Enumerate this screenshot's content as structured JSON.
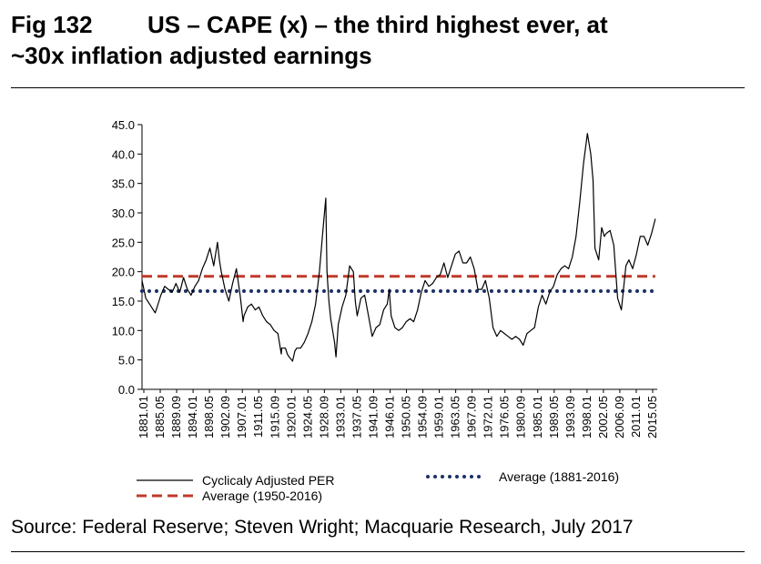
{
  "title": {
    "fig_number": "Fig 132",
    "line1": "US – CAPE (x) – the third highest ever, at",
    "line2": "~30x inflation adjusted earnings"
  },
  "source": "Source: Federal Reserve; Steven Wright; Macquarie Research, July 2017",
  "chart_data": {
    "type": "line",
    "title": "",
    "xlabel": "",
    "ylabel": "",
    "ylim": [
      0,
      45
    ],
    "yticks": [
      "0.0",
      "5.0",
      "10.0",
      "15.0",
      "20.0",
      "25.0",
      "30.0",
      "35.0",
      "40.0",
      "45.0"
    ],
    "xlim": [
      1881.0,
      2017.5
    ],
    "xticks": [
      "1881.01",
      "1885.05",
      "1889.09",
      "1894.01",
      "1898.05",
      "1902.09",
      "1907.01",
      "1911.05",
      "1915.09",
      "1920.01",
      "1924.05",
      "1928.09",
      "1933.01",
      "1937.05",
      "1941.09",
      "1946.01",
      "1950.05",
      "1954.09",
      "1959.01",
      "1963.05",
      "1967.09",
      "1972.01",
      "1976.05",
      "1980.09",
      "1985.01",
      "1989.05",
      "1993.09",
      "1998.01",
      "2002.05",
      "2006.09",
      "2011.01",
      "2015.05"
    ],
    "grid": false,
    "legend_position": "bottom",
    "series": [
      {
        "name": "Cyclicaly Adjusted PER",
        "color": "#000000",
        "style": "solid",
        "x": [
          1881.0,
          1881.5,
          1882.0,
          1883.0,
          1884.0,
          1884.5,
          1885.0,
          1886.0,
          1887.0,
          1888.0,
          1889.0,
          1890.0,
          1891.0,
          1892.0,
          1893.0,
          1894.0,
          1895.0,
          1896.0,
          1897.0,
          1898.0,
          1899.0,
          1900.0,
          1901.0,
          1901.5,
          1902.0,
          1903.0,
          1904.0,
          1905.0,
          1906.0,
          1907.0,
          1907.8,
          1908.0,
          1909.0,
          1910.0,
          1911.0,
          1912.0,
          1913.0,
          1914.0,
          1915.0,
          1916.0,
          1917.0,
          1917.9,
          1918.0,
          1919.0,
          1919.5,
          1920.0,
          1920.9,
          1921.5,
          1922.0,
          1923.0,
          1924.0,
          1925.0,
          1926.0,
          1927.0,
          1928.0,
          1929.0,
          1929.7,
          1930.0,
          1930.5,
          1931.0,
          1932.0,
          1932.4,
          1933.0,
          1934.0,
          1935.0,
          1936.0,
          1937.0,
          1937.5,
          1938.0,
          1939.0,
          1940.0,
          1941.0,
          1942.0,
          1943.0,
          1944.0,
          1945.0,
          1946.0,
          1946.5,
          1947.0,
          1948.0,
          1949.0,
          1950.0,
          1951.0,
          1952.0,
          1953.0,
          1954.0,
          1955.0,
          1956.0,
          1957.0,
          1958.0,
          1959.0,
          1960.0,
          1961.0,
          1962.0,
          1963.0,
          1964.0,
          1965.0,
          1966.0,
          1967.0,
          1968.0,
          1969.0,
          1970.0,
          1971.0,
          1972.0,
          1973.0,
          1974.0,
          1975.0,
          1976.0,
          1977.0,
          1978.0,
          1979.0,
          1980.0,
          1981.0,
          1982.0,
          1983.0,
          1984.0,
          1985.0,
          1986.0,
          1987.0,
          1988.0,
          1989.0,
          1990.0,
          1991.0,
          1992.0,
          1993.0,
          1994.0,
          1995.0,
          1996.0,
          1997.0,
          1998.0,
          1999.0,
          1999.9,
          2000.5,
          2001.0,
          2002.0,
          2002.8,
          2003.5,
          2004.0,
          2005.0,
          2006.0,
          2007.0,
          2008.0,
          2009.2,
          2010.0,
          2011.0,
          2012.0,
          2013.0,
          2014.0,
          2015.0,
          2016.0,
          2017.0
        ],
        "values": [
          18.5,
          17.0,
          15.5,
          14.5,
          13.5,
          13.0,
          14.0,
          16.0,
          17.5,
          17.0,
          16.5,
          18.0,
          16.5,
          19.0,
          17.0,
          16.0,
          17.5,
          18.5,
          20.5,
          22.0,
          24.0,
          21.0,
          25.0,
          22.0,
          20.0,
          17.0,
          15.0,
          18.0,
          20.5,
          16.0,
          11.5,
          12.5,
          14.0,
          14.5,
          13.5,
          14.0,
          12.5,
          11.5,
          11.0,
          10.0,
          9.5,
          6.0,
          7.0,
          7.0,
          6.0,
          5.5,
          4.8,
          6.5,
          7.0,
          7.0,
          8.0,
          9.5,
          11.5,
          14.5,
          20.0,
          27.5,
          32.5,
          20.0,
          15.0,
          12.0,
          8.0,
          5.5,
          11.0,
          14.0,
          16.0,
          21.0,
          20.0,
          15.0,
          12.5,
          15.5,
          16.0,
          12.5,
          9.0,
          10.5,
          11.0,
          13.5,
          14.5,
          17.0,
          12.5,
          10.5,
          10.0,
          10.5,
          11.5,
          12.0,
          11.5,
          13.5,
          16.5,
          18.5,
          17.5,
          18.0,
          19.0,
          19.5,
          21.5,
          19.0,
          21.0,
          23.0,
          23.5,
          21.5,
          21.5,
          22.5,
          20.5,
          17.0,
          17.0,
          18.5,
          15.5,
          10.5,
          9.0,
          10.0,
          9.5,
          9.0,
          8.5,
          9.0,
          8.5,
          7.5,
          9.5,
          10.0,
          10.5,
          14.0,
          16.0,
          14.5,
          16.5,
          17.5,
          19.5,
          20.5,
          21.0,
          20.5,
          22.5,
          26.0,
          32.0,
          38.5,
          43.5,
          40.0,
          35.5,
          24.0,
          22.0,
          27.5,
          26.0,
          26.5,
          27.0,
          24.5,
          15.5,
          13.5,
          21.0,
          22.0,
          20.5,
          23.0,
          26.0,
          26.0,
          24.5,
          26.5,
          29.0
        ]
      },
      {
        "name": "Average (1881-2016)",
        "color": "#1a2f66",
        "style": "dotted",
        "x": [
          1881.0,
          2017.0
        ],
        "values": [
          16.7,
          16.7
        ]
      },
      {
        "name": "Average (1950-2016)",
        "color": "#c0392b",
        "style": "dashed",
        "x": [
          1881.0,
          2017.0
        ],
        "values": [
          19.2,
          19.2
        ]
      }
    ]
  }
}
